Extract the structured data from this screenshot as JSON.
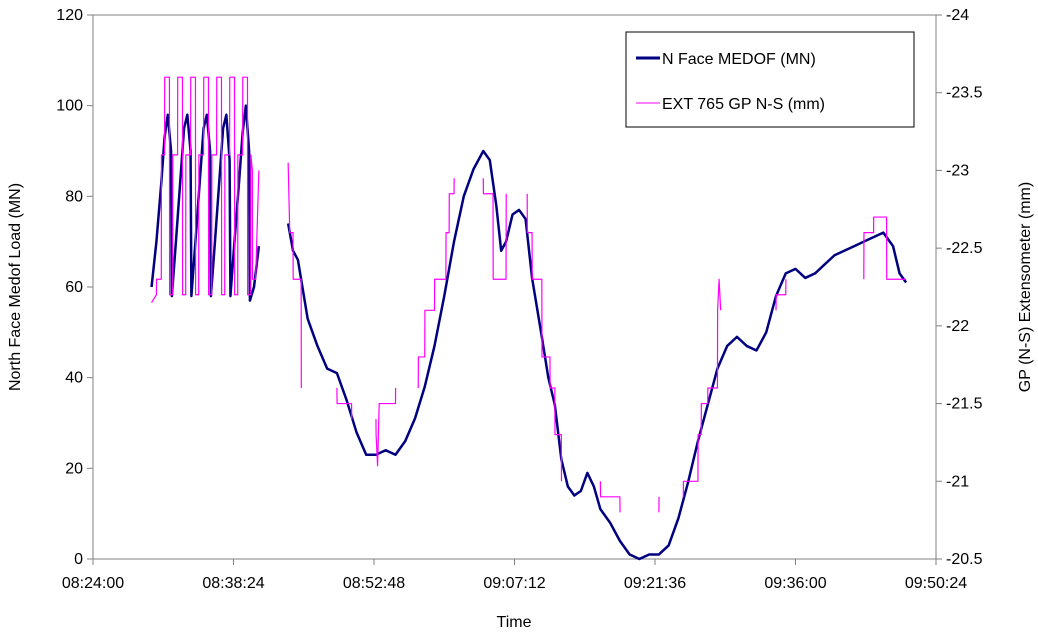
{
  "chart_data": {
    "type": "line",
    "title": "",
    "xlabel": "Time",
    "ylabel": "North Face Medof Load (MN)",
    "y2label": "GP (N-S) Extensometer (mm)",
    "x_ticks": [
      "08:24:00",
      "08:38:24",
      "08:52:48",
      "09:07:12",
      "09:21:36",
      "09:36:00",
      "09:50:24"
    ],
    "xlim": [
      "08:24:00",
      "09:50:24"
    ],
    "ylim": [
      0,
      120
    ],
    "y_ticks": [
      0,
      20,
      40,
      60,
      80,
      100,
      120
    ],
    "y2lim": [
      -20.5,
      -24
    ],
    "y2_ticks": [
      -20.5,
      -21,
      -21.5,
      -22,
      -22.5,
      -23,
      -23.5,
      -24
    ],
    "grid": false,
    "legend_position": "top-right",
    "series": [
      {
        "name": "N Face MEDOF (MN)",
        "axis": "left",
        "color": "#000080",
        "points": [
          [
            "08:30:00",
            60
          ],
          [
            "08:30:30",
            70
          ],
          [
            "08:31:00",
            83
          ],
          [
            "08:31:20",
            93
          ],
          [
            "08:31:40",
            98
          ],
          [
            "08:32:00",
            90
          ],
          [
            "08:32:05",
            58
          ],
          [
            "08:32:30",
            70
          ],
          [
            "08:33:00",
            85
          ],
          [
            "08:33:20",
            95
          ],
          [
            "08:33:40",
            98
          ],
          [
            "08:34:00",
            90
          ],
          [
            "08:34:05",
            58
          ],
          [
            "08:34:30",
            70
          ],
          [
            "08:35:00",
            85
          ],
          [
            "08:35:20",
            95
          ],
          [
            "08:35:40",
            98
          ],
          [
            "08:36:00",
            90
          ],
          [
            "08:36:05",
            58
          ],
          [
            "08:36:30",
            70
          ],
          [
            "08:37:00",
            85
          ],
          [
            "08:37:20",
            95
          ],
          [
            "08:37:40",
            98
          ],
          [
            "08:38:00",
            88
          ],
          [
            "08:38:05",
            58
          ],
          [
            "08:38:30",
            70
          ],
          [
            "08:39:00",
            84
          ],
          [
            "08:39:20",
            94
          ],
          [
            "08:39:40",
            100
          ],
          [
            "08:40:00",
            90
          ],
          [
            "08:40:05",
            57
          ],
          [
            "08:40:30",
            60
          ],
          [
            "08:41:00",
            69
          ],
          [
            "08:44:00",
            74
          ],
          [
            "08:44:30",
            68
          ],
          [
            "08:45:00",
            66
          ],
          [
            "08:46:00",
            53
          ],
          [
            "08:47:00",
            47
          ],
          [
            "08:48:00",
            42
          ],
          [
            "08:49:00",
            41
          ],
          [
            "08:50:00",
            35
          ],
          [
            "08:51:00",
            28
          ],
          [
            "08:52:00",
            23
          ],
          [
            "08:53:00",
            23
          ],
          [
            "08:54:00",
            24
          ],
          [
            "08:55:00",
            23
          ],
          [
            "08:56:00",
            26
          ],
          [
            "08:57:00",
            31
          ],
          [
            "08:58:00",
            38
          ],
          [
            "08:59:00",
            47
          ],
          [
            "09:00:00",
            58
          ],
          [
            "09:01:00",
            70
          ],
          [
            "09:02:00",
            80
          ],
          [
            "09:03:00",
            86
          ],
          [
            "09:04:00",
            90
          ],
          [
            "09:04:40",
            88
          ],
          [
            "09:05:20",
            78
          ],
          [
            "09:05:50",
            68
          ],
          [
            "09:06:20",
            70
          ],
          [
            "09:07:00",
            76
          ],
          [
            "09:07:40",
            77
          ],
          [
            "09:08:20",
            75
          ],
          [
            "09:09:00",
            62
          ],
          [
            "09:10:00",
            49
          ],
          [
            "09:10:40",
            40
          ],
          [
            "09:11:20",
            34
          ],
          [
            "09:12:00",
            22
          ],
          [
            "09:12:40",
            16
          ],
          [
            "09:13:20",
            14
          ],
          [
            "09:14:00",
            15
          ],
          [
            "09:14:40",
            19
          ],
          [
            "09:15:20",
            16
          ],
          [
            "09:16:00",
            11
          ],
          [
            "09:17:00",
            8
          ],
          [
            "09:18:00",
            4
          ],
          [
            "09:19:00",
            1
          ],
          [
            "09:20:00",
            0
          ],
          [
            "09:21:00",
            1
          ],
          [
            "09:22:00",
            1
          ],
          [
            "09:23:00",
            3
          ],
          [
            "09:24:00",
            9
          ],
          [
            "09:25:00",
            17
          ],
          [
            "09:26:00",
            26
          ],
          [
            "09:27:00",
            34
          ],
          [
            "09:28:00",
            42
          ],
          [
            "09:29:00",
            47
          ],
          [
            "09:30:00",
            49
          ],
          [
            "09:31:00",
            47
          ],
          [
            "09:32:00",
            46
          ],
          [
            "09:33:00",
            50
          ],
          [
            "09:34:00",
            58
          ],
          [
            "09:35:00",
            63
          ],
          [
            "09:36:00",
            64
          ],
          [
            "09:37:00",
            62
          ],
          [
            "09:38:00",
            63
          ],
          [
            "09:39:00",
            65
          ],
          [
            "09:40:00",
            67
          ],
          [
            "09:41:00",
            68
          ],
          [
            "09:42:00",
            69
          ],
          [
            "09:43:00",
            70
          ],
          [
            "09:44:00",
            71
          ],
          [
            "09:45:00",
            72
          ],
          [
            "09:46:00",
            69
          ],
          [
            "09:46:40",
            63
          ],
          [
            "09:47:20",
            61
          ]
        ]
      },
      {
        "name": "EXT 765 GP N-S (mm)",
        "axis": "right",
        "color": "#FF00FF",
        "points": [
          [
            "08:30:00",
            -22.15
          ],
          [
            "08:30:30",
            -22.2
          ],
          [
            "08:30:31",
            -22.3
          ],
          [
            "08:31:00",
            -22.3
          ],
          [
            "08:31:01",
            -23.1
          ],
          [
            "08:31:20",
            -23.1
          ],
          [
            "08:31:21",
            -23.6
          ],
          [
            "08:31:50",
            -23.6
          ],
          [
            "08:31:51",
            -22.2
          ],
          [
            "08:32:10",
            -22.2
          ],
          [
            "08:32:11",
            -23.1
          ],
          [
            "08:32:40",
            -23.1
          ],
          [
            "08:32:41",
            -23.6
          ],
          [
            "08:33:10",
            -23.6
          ],
          [
            "08:33:11",
            -22.2
          ],
          [
            "08:33:30",
            -22.2
          ],
          [
            "08:33:31",
            -23.1
          ],
          [
            "08:34:00",
            -23.1
          ],
          [
            "08:34:01",
            -23.6
          ],
          [
            "08:34:30",
            -23.6
          ],
          [
            "08:34:31",
            -22.2
          ],
          [
            "08:34:50",
            -22.2
          ],
          [
            "08:34:51",
            -23.1
          ],
          [
            "08:35:20",
            -23.1
          ],
          [
            "08:35:21",
            -23.6
          ],
          [
            "08:35:50",
            -23.6
          ],
          [
            "08:35:51",
            -22.2
          ],
          [
            "08:36:10",
            -22.2
          ],
          [
            "08:36:11",
            -23.1
          ],
          [
            "08:36:40",
            -23.1
          ],
          [
            "08:36:41",
            -23.6
          ],
          [
            "08:37:10",
            -23.6
          ],
          [
            "08:37:11",
            -22.2
          ],
          [
            "08:37:30",
            -22.2
          ],
          [
            "08:37:31",
            -23.1
          ],
          [
            "08:38:00",
            -23.1
          ],
          [
            "08:38:01",
            -23.6
          ],
          [
            "08:38:30",
            -23.6
          ],
          [
            "08:38:31",
            -22.2
          ],
          [
            "08:38:50",
            -22.2
          ],
          [
            "08:38:51",
            -23.1
          ],
          [
            "08:39:20",
            -23.1
          ],
          [
            "08:39:21",
            -23.6
          ],
          [
            "08:39:50",
            -23.6
          ],
          [
            "08:39:51",
            -22.2
          ],
          [
            "08:40:10",
            -22.2
          ],
          [
            "08:40:11",
            -23.1
          ],
          [
            "08:40:20",
            -23.0
          ],
          [
            "08:40:21",
            -22.3
          ],
          [
            "08:40:40",
            -22.3
          ],
          [
            "08:41:00",
            -23.0
          ],
          [
            "08:44:00",
            -23.05
          ],
          [
            "08:44:10",
            -22.6
          ],
          [
            "08:44:30",
            -22.6
          ],
          [
            "08:44:31",
            -22.3
          ],
          [
            "08:45:20",
            -22.3
          ],
          [
            "08:45:21",
            -21.6
          ],
          [
            "08:49:00",
            -21.6
          ],
          [
            "08:49:01",
            -21.5
          ],
          [
            "08:50:30",
            -21.5
          ],
          [
            "08:50:31",
            -21.4
          ],
          [
            "08:53:00",
            -21.4
          ],
          [
            "08:53:01",
            -21.3
          ],
          [
            "08:53:10",
            -21.1
          ],
          [
            "08:53:20",
            -21.5
          ],
          [
            "08:55:00",
            -21.5
          ],
          [
            "08:55:01",
            -21.6
          ],
          [
            "08:57:20",
            -21.6
          ],
          [
            "08:57:21",
            -21.8
          ],
          [
            "08:58:00",
            -21.8
          ],
          [
            "08:58:01",
            -22.1
          ],
          [
            "08:59:00",
            -22.1
          ],
          [
            "08:59:01",
            -22.3
          ],
          [
            "09:00:10",
            -22.3
          ],
          [
            "09:00:11",
            -22.6
          ],
          [
            "09:00:30",
            -22.6
          ],
          [
            "09:00:31",
            -22.85
          ],
          [
            "09:01:00",
            -22.85
          ],
          [
            "09:01:01",
            -22.95
          ],
          [
            "09:04:00",
            -22.95
          ],
          [
            "09:04:01",
            -22.85
          ],
          [
            "09:05:00",
            -22.85
          ],
          [
            "09:05:01",
            -22.3
          ],
          [
            "09:06:20",
            -22.3
          ],
          [
            "09:06:21",
            -22.85
          ],
          [
            "09:08:30",
            -22.85
          ],
          [
            "09:08:31",
            -22.6
          ],
          [
            "09:09:00",
            -22.6
          ],
          [
            "09:09:01",
            -22.3
          ],
          [
            "09:10:00",
            -22.3
          ],
          [
            "09:10:01",
            -21.8
          ],
          [
            "09:10:50",
            -21.8
          ],
          [
            "09:10:51",
            -21.6
          ],
          [
            "09:11:20",
            -21.6
          ],
          [
            "09:11:21",
            -21.3
          ],
          [
            "09:12:00",
            -21.3
          ],
          [
            "09:12:01",
            -21.0
          ],
          [
            "09:16:00",
            -21.0
          ],
          [
            "09:16:01",
            -20.9
          ],
          [
            "09:18:00",
            -20.9
          ],
          [
            "09:18:01",
            -20.8
          ],
          [
            "09:22:00",
            -20.8
          ],
          [
            "09:22:01",
            -20.9
          ],
          [
            "09:24:30",
            -20.9
          ],
          [
            "09:24:31",
            -21.0
          ],
          [
            "09:26:00",
            -21.0
          ],
          [
            "09:26:01",
            -21.3
          ],
          [
            "09:26:20",
            -21.3
          ],
          [
            "09:26:21",
            -21.5
          ],
          [
            "09:27:00",
            -21.5
          ],
          [
            "09:27:01",
            -21.6
          ],
          [
            "09:28:00",
            -21.6
          ],
          [
            "09:28:01",
            -22.1
          ],
          [
            "09:28:10",
            -22.3
          ],
          [
            "09:28:20",
            -22.1
          ],
          [
            "09:34:00",
            -22.1
          ],
          [
            "09:34:01",
            -22.2
          ],
          [
            "09:35:00",
            -22.2
          ],
          [
            "09:35:01",
            -22.3
          ],
          [
            "09:43:00",
            -22.3
          ],
          [
            "09:43:01",
            -22.6
          ],
          [
            "09:44:00",
            -22.6
          ],
          [
            "09:44:01",
            -22.7
          ],
          [
            "09:45:20",
            -22.7
          ],
          [
            "09:45:21",
            -22.3
          ],
          [
            "09:47:20",
            -22.3
          ]
        ]
      }
    ]
  }
}
